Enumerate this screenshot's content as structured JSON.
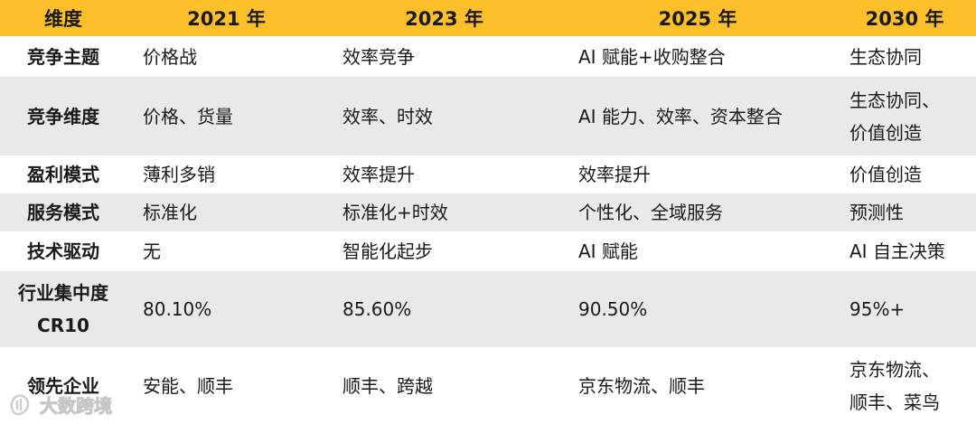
{
  "table": {
    "headers": [
      "维度",
      "2021 年",
      "2023 年",
      "2025 年",
      "2030 年"
    ],
    "rows": [
      {
        "dim": "竞争主题",
        "cells": [
          [
            "价格战"
          ],
          [
            "效率竞争"
          ],
          [
            "AI 赋能+收购整合"
          ],
          [
            "生态协同"
          ]
        ]
      },
      {
        "dim": "竞争维度",
        "cells": [
          [
            "价格、货量"
          ],
          [
            "效率、时效"
          ],
          [
            "AI 能力、效率、资本整合"
          ],
          [
            "生态协同、",
            "价值创造"
          ]
        ]
      },
      {
        "dim": "盈利模式",
        "cells": [
          [
            "薄利多销"
          ],
          [
            "效率提升"
          ],
          [
            "效率提升"
          ],
          [
            "价值创造"
          ]
        ]
      },
      {
        "dim": "服务模式",
        "cells": [
          [
            "标准化"
          ],
          [
            "标准化+时效"
          ],
          [
            "个性化、全域服务"
          ],
          [
            "预测性"
          ]
        ]
      },
      {
        "dim": "技术驱动",
        "cells": [
          [
            "无"
          ],
          [
            "智能化起步"
          ],
          [
            "AI 赋能"
          ],
          [
            "AI 自主决策"
          ]
        ]
      },
      {
        "dim_lines": [
          "行业集中度",
          "CR10"
        ],
        "cells": [
          [
            "80.10%"
          ],
          [
            "85.60%"
          ],
          [
            "90.50%"
          ],
          [
            "95%+"
          ]
        ]
      },
      {
        "dim": "领先企业",
        "cells": [
          [
            "安能、顺丰"
          ],
          [
            "顺丰、跨越"
          ],
          [
            "京东物流、顺丰"
          ],
          [
            "京东物流、",
            "顺丰、菜鸟"
          ]
        ]
      }
    ]
  },
  "watermark": {
    "text": "大数跨境",
    "icon": "brand-logo-icon"
  },
  "colors": {
    "header_bg": "#fbbf2a",
    "alt_row_bg": "#e9e9e9"
  }
}
